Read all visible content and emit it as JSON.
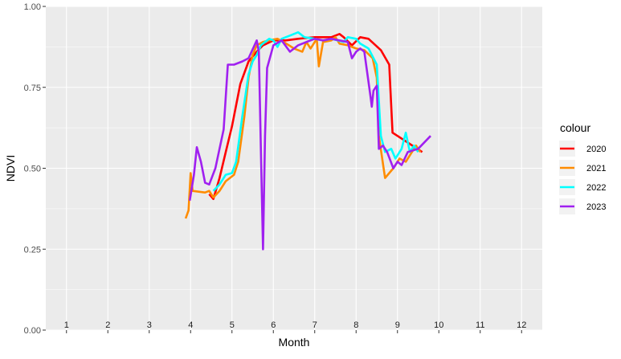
{
  "chart_data": {
    "type": "line",
    "title": "",
    "xlabel": "Month",
    "ylabel": "NDVI",
    "xlim": [
      0.5,
      12.5
    ],
    "ylim": [
      0.0,
      1.0
    ],
    "y_ticks": [
      0.0,
      0.25,
      0.5,
      0.75,
      1.0
    ],
    "y_tick_labels": [
      "0.00",
      "0.25",
      "0.50",
      "0.75",
      "1.00"
    ],
    "x_month_labels": [
      "1",
      "2",
      "3",
      "4",
      "5",
      "6",
      "7",
      "8",
      "9",
      "10",
      "11",
      "12"
    ],
    "grid": true,
    "legend": {
      "title": "colour",
      "placement": "right"
    },
    "colors": {
      "panel_background": "#ebebeb",
      "grid": "#ffffff",
      "axis_text": "#4d4d4d"
    },
    "series": [
      {
        "name": "2020",
        "color": "#ff0000",
        "points": [
          [
            4.45,
            0.42
          ],
          [
            4.55,
            0.405
          ],
          [
            4.7,
            0.47
          ],
          [
            4.85,
            0.55
          ],
          [
            5.0,
            0.63
          ],
          [
            5.2,
            0.76
          ],
          [
            5.4,
            0.83
          ],
          [
            5.6,
            0.86
          ],
          [
            5.75,
            0.88
          ],
          [
            6.0,
            0.895
          ],
          [
            6.3,
            0.895
          ],
          [
            6.6,
            0.9
          ],
          [
            7.0,
            0.905
          ],
          [
            7.4,
            0.905
          ],
          [
            7.6,
            0.915
          ],
          [
            7.7,
            0.905
          ],
          [
            7.9,
            0.88
          ],
          [
            8.1,
            0.905
          ],
          [
            8.3,
            0.9
          ],
          [
            8.6,
            0.865
          ],
          [
            8.8,
            0.82
          ],
          [
            8.88,
            0.61
          ],
          [
            9.6,
            0.55
          ]
        ]
      },
      {
        "name": "2021",
        "color": "#ff8c00",
        "points": [
          [
            3.88,
            0.345
          ],
          [
            3.95,
            0.37
          ],
          [
            4.0,
            0.485
          ],
          [
            4.05,
            0.43
          ],
          [
            4.35,
            0.425
          ],
          [
            4.45,
            0.43
          ],
          [
            4.55,
            0.41
          ],
          [
            4.7,
            0.43
          ],
          [
            4.85,
            0.46
          ],
          [
            5.05,
            0.48
          ],
          [
            5.15,
            0.52
          ],
          [
            5.3,
            0.66
          ],
          [
            5.4,
            0.78
          ],
          [
            5.5,
            0.85
          ],
          [
            5.6,
            0.88
          ],
          [
            5.75,
            0.89
          ],
          [
            5.9,
            0.895
          ],
          [
            6.1,
            0.9
          ],
          [
            6.25,
            0.89
          ],
          [
            6.5,
            0.87
          ],
          [
            6.7,
            0.86
          ],
          [
            6.8,
            0.89
          ],
          [
            6.9,
            0.87
          ],
          [
            7.05,
            0.9
          ],
          [
            7.1,
            0.815
          ],
          [
            7.2,
            0.89
          ],
          [
            7.4,
            0.895
          ],
          [
            7.5,
            0.905
          ],
          [
            7.6,
            0.885
          ],
          [
            7.8,
            0.88
          ],
          [
            8.0,
            0.87
          ],
          [
            8.2,
            0.865
          ],
          [
            8.4,
            0.84
          ],
          [
            8.5,
            0.78
          ],
          [
            8.55,
            0.6
          ],
          [
            8.7,
            0.47
          ],
          [
            8.9,
            0.5
          ],
          [
            9.05,
            0.53
          ],
          [
            9.2,
            0.52
          ],
          [
            9.45,
            0.57
          ],
          [
            9.55,
            0.55
          ]
        ]
      },
      {
        "name": "2022",
        "color": "#00ffff",
        "points": [
          [
            4.55,
            0.43
          ],
          [
            4.7,
            0.45
          ],
          [
            4.85,
            0.48
          ],
          [
            5.0,
            0.485
          ],
          [
            5.1,
            0.52
          ],
          [
            5.25,
            0.66
          ],
          [
            5.4,
            0.79
          ],
          [
            5.5,
            0.83
          ],
          [
            5.6,
            0.85
          ],
          [
            5.7,
            0.88
          ],
          [
            5.8,
            0.89
          ],
          [
            5.9,
            0.9
          ],
          [
            6.0,
            0.895
          ],
          [
            6.1,
            0.875
          ],
          [
            6.2,
            0.9
          ],
          [
            6.4,
            0.91
          ],
          [
            6.6,
            0.92
          ],
          [
            6.75,
            0.905
          ],
          [
            7.0,
            0.9
          ],
          [
            7.2,
            0.895
          ],
          [
            7.4,
            0.9
          ],
          [
            7.55,
            0.895
          ],
          [
            7.7,
            0.89
          ],
          [
            7.8,
            0.905
          ],
          [
            8.0,
            0.9
          ],
          [
            8.1,
            0.885
          ],
          [
            8.3,
            0.87
          ],
          [
            8.4,
            0.845
          ],
          [
            8.5,
            0.82
          ],
          [
            8.6,
            0.6
          ],
          [
            8.7,
            0.55
          ],
          [
            8.85,
            0.56
          ],
          [
            8.95,
            0.53
          ],
          [
            9.1,
            0.56
          ],
          [
            9.2,
            0.61
          ],
          [
            9.3,
            0.55
          ],
          [
            9.4,
            0.57
          ],
          [
            9.5,
            0.55
          ]
        ]
      },
      {
        "name": "2023",
        "color": "#a020f0",
        "points": [
          [
            3.98,
            0.4
          ],
          [
            4.08,
            0.48
          ],
          [
            4.15,
            0.565
          ],
          [
            4.25,
            0.52
          ],
          [
            4.35,
            0.455
          ],
          [
            4.45,
            0.45
          ],
          [
            4.6,
            0.5
          ],
          [
            4.8,
            0.62
          ],
          [
            4.9,
            0.82
          ],
          [
            5.05,
            0.82
          ],
          [
            5.25,
            0.83
          ],
          [
            5.4,
            0.84
          ],
          [
            5.6,
            0.895
          ],
          [
            5.65,
            0.86
          ],
          [
            5.7,
            0.55
          ],
          [
            5.75,
            0.25
          ],
          [
            5.8,
            0.6
          ],
          [
            5.85,
            0.81
          ],
          [
            6.0,
            0.88
          ],
          [
            6.2,
            0.895
          ],
          [
            6.4,
            0.86
          ],
          [
            6.6,
            0.88
          ],
          [
            6.8,
            0.89
          ],
          [
            7.0,
            0.9
          ],
          [
            7.2,
            0.895
          ],
          [
            7.4,
            0.9
          ],
          [
            7.6,
            0.895
          ],
          [
            7.8,
            0.89
          ],
          [
            7.9,
            0.84
          ],
          [
            8.0,
            0.86
          ],
          [
            8.1,
            0.87
          ],
          [
            8.2,
            0.86
          ],
          [
            8.35,
            0.72
          ],
          [
            8.38,
            0.69
          ],
          [
            8.42,
            0.74
          ],
          [
            8.5,
            0.755
          ],
          [
            8.55,
            0.56
          ],
          [
            8.65,
            0.57
          ],
          [
            8.75,
            0.55
          ],
          [
            8.9,
            0.5
          ],
          [
            9.0,
            0.52
          ],
          [
            9.1,
            0.51
          ],
          [
            9.25,
            0.55
          ],
          [
            9.5,
            0.56
          ],
          [
            9.8,
            0.6
          ]
        ]
      }
    ]
  }
}
